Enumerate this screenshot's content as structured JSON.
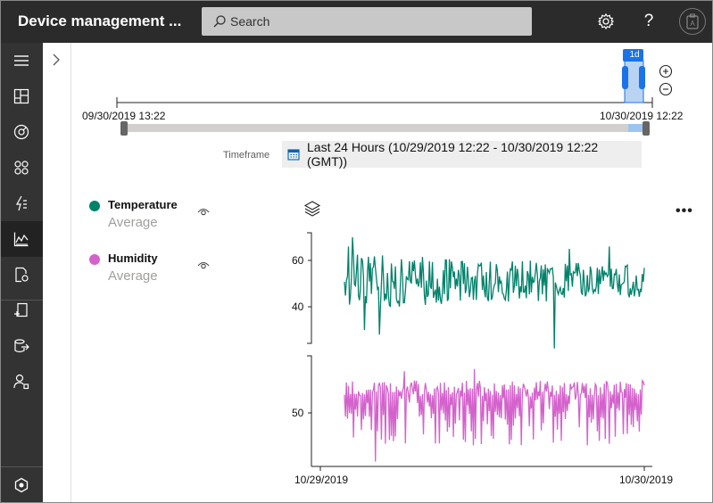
{
  "header": {
    "title": "Device management ...",
    "search_placeholder": "Search"
  },
  "timeline": {
    "zoom_badge": "1d",
    "start_label": "09/30/2019 13:22",
    "end_label": "10/30/2019 12:22",
    "timeframe_label": "Timeframe",
    "timeframe_value": "Last 24 Hours (10/29/2019 12:22 - 10/30/2019 12:22 (GMT))"
  },
  "legend": [
    {
      "name": "Temperature",
      "aggregation": "Average",
      "color": "#00826b"
    },
    {
      "name": "Humidity",
      "aggregation": "Average",
      "color": "#d462cc"
    }
  ],
  "chart_data": {
    "type": "line",
    "x_range": [
      "10/29/2019",
      "10/30/2019"
    ],
    "x_tick_labels": [
      "10/29/2019",
      "10/30/2019"
    ],
    "series": [
      {
        "name": "Temperature",
        "aggregation": "Average",
        "color": "#00826b",
        "y_ticks": [
          60,
          40
        ],
        "y_range": [
          22,
          71
        ],
        "mean": 51,
        "amplitude": 10
      },
      {
        "name": "Humidity",
        "aggregation": "Average",
        "color": "#d462cc",
        "y_ticks": [
          50
        ],
        "y_range": [
          29,
          69
        ],
        "mean": 50,
        "amplitude": 14
      }
    ]
  }
}
